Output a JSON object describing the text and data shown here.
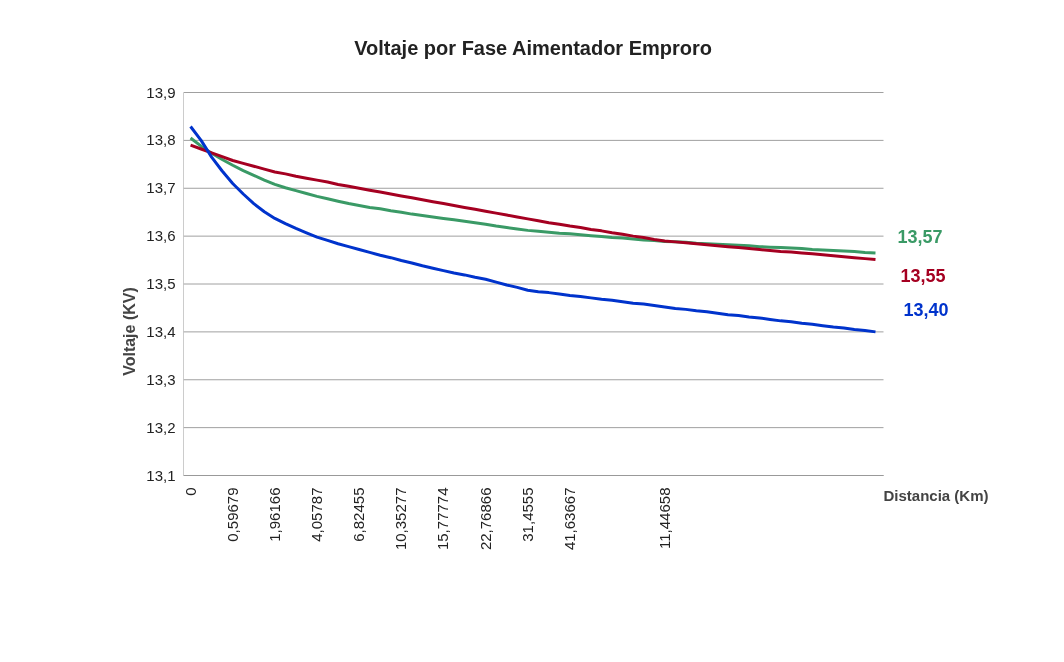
{
  "chart_data": {
    "type": "line",
    "title": "Voltaje por Fase Aimentador Emproro",
    "xlabel": "Distancia (Km)",
    "ylabel": "Voltaje (KV)",
    "categories": [
      "0",
      null,
      null,
      null,
      "0,59679",
      null,
      null,
      null,
      "1,96166",
      null,
      null,
      null,
      "4,05787",
      null,
      null,
      null,
      "6,82455",
      null,
      null,
      null,
      "10,35277",
      null,
      null,
      null,
      "15,77774",
      null,
      null,
      null,
      "22,76866",
      null,
      null,
      null,
      "31,4555",
      null,
      null,
      null,
      "41,63667",
      null,
      null,
      null,
      null,
      null,
      null,
      null,
      null,
      "11,44658",
      null,
      null,
      null,
      null,
      null,
      null,
      null,
      null,
      null,
      null,
      null,
      null,
      null,
      null,
      null,
      null,
      null,
      null,
      null,
      null
    ],
    "series": [
      {
        "color": "#3a9a66",
        "values": [
          13.805,
          13.788,
          13.773,
          13.76,
          13.748,
          13.737,
          13.727,
          13.717,
          13.708,
          13.701,
          13.695,
          13.689,
          13.683,
          13.678,
          13.673,
          13.668,
          13.664,
          13.66,
          13.657,
          13.653,
          13.65,
          13.646,
          13.643,
          13.64,
          13.637,
          13.634,
          13.631,
          13.628,
          13.625,
          13.621,
          13.618,
          13.615,
          13.612,
          13.61,
          13.608,
          13.606,
          13.605,
          13.603,
          13.601,
          13.599,
          13.597,
          13.596,
          13.594,
          13.592,
          13.591,
          13.589,
          13.588,
          13.587,
          13.585,
          13.584,
          13.583,
          13.582,
          13.581,
          13.58,
          13.578,
          13.577,
          13.576,
          13.575,
          13.574,
          13.572,
          13.571,
          13.57,
          13.569,
          13.568,
          13.566,
          13.565
        ]
      },
      {
        "color": "#a50021",
        "values": [
          13.79,
          13.782,
          13.774,
          13.766,
          13.758,
          13.752,
          13.746,
          13.74,
          13.734,
          13.73,
          13.725,
          13.721,
          13.717,
          13.713,
          13.708,
          13.704,
          13.7,
          13.696,
          13.692,
          13.688,
          13.684,
          13.68,
          13.676,
          13.672,
          13.668,
          13.664,
          13.66,
          13.656,
          13.652,
          13.648,
          13.644,
          13.64,
          13.636,
          13.632,
          13.628,
          13.625,
          13.621,
          13.618,
          13.614,
          13.611,
          13.607,
          13.604,
          13.6,
          13.597,
          13.593,
          13.59,
          13.588,
          13.586,
          13.584,
          13.582,
          13.58,
          13.578,
          13.576,
          13.574,
          13.572,
          13.57,
          13.568,
          13.567,
          13.565,
          13.563,
          13.561,
          13.559,
          13.557,
          13.555,
          13.553,
          13.551
        ]
      },
      {
        "color": "#0033cc",
        "values": [
          13.829,
          13.8,
          13.765,
          13.736,
          13.71,
          13.688,
          13.668,
          13.651,
          13.637,
          13.626,
          13.616,
          13.607,
          13.598,
          13.591,
          13.584,
          13.578,
          13.572,
          13.566,
          13.56,
          13.555,
          13.549,
          13.544,
          13.538,
          13.533,
          13.528,
          13.523,
          13.519,
          13.514,
          13.51,
          13.504,
          13.498,
          13.493,
          13.487,
          13.484,
          13.482,
          13.479,
          13.476,
          13.474,
          13.471,
          13.468,
          13.466,
          13.463,
          13.46,
          13.458,
          13.455,
          13.452,
          13.449,
          13.447,
          13.444,
          13.442,
          13.439,
          13.436,
          13.434,
          13.431,
          13.429,
          13.426,
          13.423,
          13.421,
          13.418,
          13.416,
          13.413,
          13.41,
          13.408,
          13.405,
          13.403,
          13.4
        ]
      }
    ],
    "annotations": [
      "13,57",
      "13,55",
      "13,40"
    ],
    "ylim": [
      13.1,
      13.9
    ],
    "yticks": [
      {
        "value": 13.1,
        "label": "13,1"
      },
      {
        "value": 13.2,
        "label": "13,2"
      },
      {
        "value": 13.3,
        "label": "13,3"
      },
      {
        "value": 13.4,
        "label": "13,4"
      },
      {
        "value": 13.5,
        "label": "13,5"
      },
      {
        "value": 13.6,
        "label": "13,6"
      },
      {
        "value": 13.7,
        "label": "13,7"
      },
      {
        "value": 13.8,
        "label": "13,8"
      },
      {
        "value": 13.9,
        "label": "13,9"
      }
    ],
    "grid": "y",
    "marker": "none",
    "line_style": "solid"
  }
}
